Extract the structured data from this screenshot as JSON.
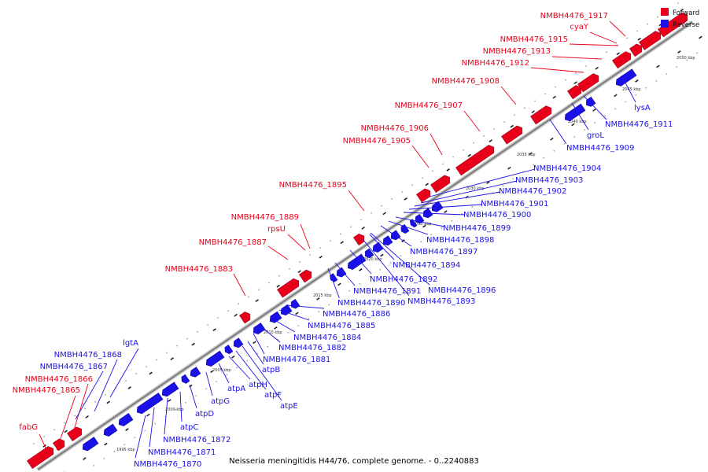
{
  "title": "Neisseria meningitidis H44/76, complete genome. - 0..2240883",
  "colors": {
    "forward": "#e8001a",
    "reverse": "#1a10e8",
    "backbone": "#9a9a9a"
  },
  "legend": [
    {
      "key": "forward",
      "label": "Forward"
    },
    {
      "key": "reverse",
      "label": "Reverse"
    }
  ],
  "axis_ticks": [
    "1995 kbp",
    "2000 kbp",
    "2005 kbp",
    "2010 kbp",
    "2015 kbp",
    "2020 kbp",
    "2025 kbp",
    "2030 kbp",
    "2035 kbp",
    "2040 kbp",
    "2045 kbp",
    "2050 kbp"
  ],
  "forward_labels": [
    "fabG",
    "NMBH4476_1865",
    "NMBH4476_1866",
    "NMBH4476_1883",
    "NMBH4476_1887",
    "rpsU",
    "NMBH4476_1889",
    "NMBH4476_1895",
    "NMBH4476_1905",
    "NMBH4476_1906",
    "NMBH4476_1907",
    "NMBH4476_1908",
    "NMBH4476_1912",
    "NMBH4476_1913",
    "NMBH4476_1915",
    "cyaY",
    "NMBH4476_1917"
  ],
  "reverse_labels": [
    "NMBH4476_1867",
    "NMBH4476_1868",
    "lgtA",
    "NMBH4476_1870",
    "NMBH4476_1871",
    "NMBH4476_1872",
    "atpC",
    "atpD",
    "atpG",
    "atpA",
    "atpH",
    "atpF",
    "atpE",
    "atpB",
    "NMBH4476_1881",
    "NMBH4476_1882",
    "NMBH4476_1884",
    "NMBH4476_1885",
    "NMBH4476_1886",
    "NMBH4476_1890",
    "NMBH4476_1891",
    "NMBH4476_1892",
    "NMBH4476_1893",
    "NMBH4476_1896",
    "NMBH4476_1894",
    "NMBH4476_1897",
    "NMBH4476_1898",
    "NMBH4476_1899",
    "NMBH4476_1900",
    "NMBH4476_1901",
    "NMBH4476_1902",
    "NMBH4476_1903",
    "NMBH4476_1904",
    "NMBH4476_1909",
    "groL",
    "NMBH4476_1911",
    "lysA"
  ]
}
